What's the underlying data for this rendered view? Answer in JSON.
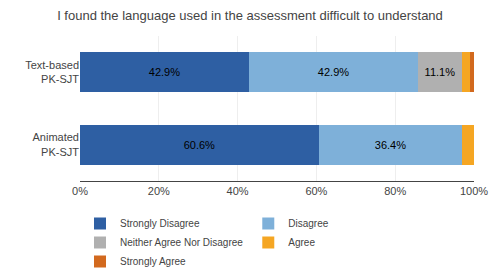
{
  "chart_data": {
    "type": "bar",
    "orientation": "horizontal",
    "stacked": true,
    "title": "I found the language used in the assessment difficult to understand",
    "categories": [
      "Text-based\nPK-SJT",
      "Animated\nPK-SJT"
    ],
    "series": [
      {
        "name": "Strongly Disagree",
        "color": "#2E5FA3",
        "values": [
          42.9,
          60.6
        ],
        "value_labels": [
          "42.9%",
          "60.6%"
        ]
      },
      {
        "name": "Disagree",
        "color": "#7EB0D9",
        "values": [
          42.9,
          36.4
        ],
        "value_labels": [
          "42.9%",
          "36.4%"
        ]
      },
      {
        "name": "Neither Agree Nor Disagree",
        "color": "#B0B0B0",
        "values": [
          11.1,
          0.0
        ],
        "value_labels": [
          "11.1%",
          null
        ]
      },
      {
        "name": "Agree",
        "color": "#F5A623",
        "values": [
          2.0,
          3.0
        ],
        "value_labels": [
          null,
          null
        ]
      },
      {
        "name": "Strongly Agree",
        "color": "#D2691E",
        "values": [
          1.1,
          0.0
        ],
        "value_labels": [
          null,
          null
        ]
      }
    ],
    "xlim": [
      0,
      100
    ],
    "xticks": [
      {
        "value": 0,
        "label": "0%"
      },
      {
        "value": 20,
        "label": "20%"
      },
      {
        "value": 40,
        "label": "40%"
      },
      {
        "value": 60,
        "label": "60%"
      },
      {
        "value": 80,
        "label": "80%"
      },
      {
        "value": 100,
        "label": "100%"
      }
    ],
    "grid": true,
    "data_labels": true,
    "legend": "bottom"
  }
}
